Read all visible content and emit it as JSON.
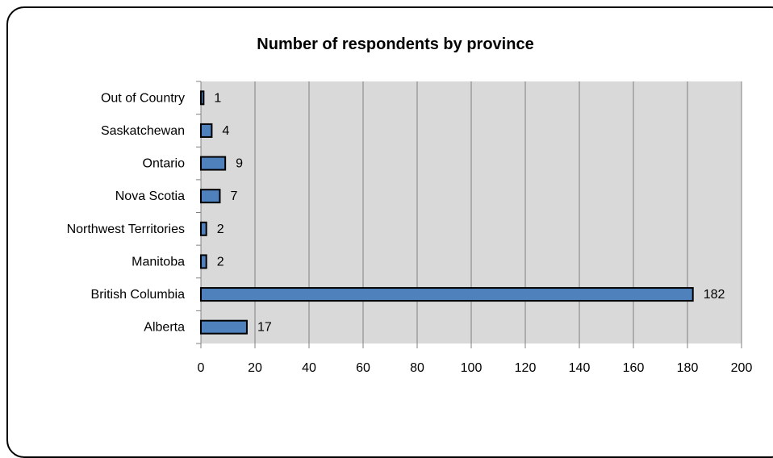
{
  "chart_data": {
    "type": "bar",
    "orientation": "horizontal",
    "title": "Number of respondents by province",
    "categories": [
      "Alberta",
      "British Columbia",
      "Manitoba",
      "Northwest Territories",
      "Nova Scotia",
      "Ontario",
      "Saskatchewan",
      "Out of Country"
    ],
    "values": [
      17,
      182,
      2,
      2,
      7,
      9,
      4,
      1
    ],
    "xlim": [
      0,
      200
    ],
    "x_ticks": [
      0,
      20,
      40,
      60,
      80,
      100,
      120,
      140,
      160,
      180,
      200
    ],
    "grid": true,
    "data_labels": true,
    "colors": {
      "bar": "#4F81BD",
      "bar_border": "#000000",
      "plot_background": "#D9D9D9",
      "gridline": "#808080"
    }
  }
}
